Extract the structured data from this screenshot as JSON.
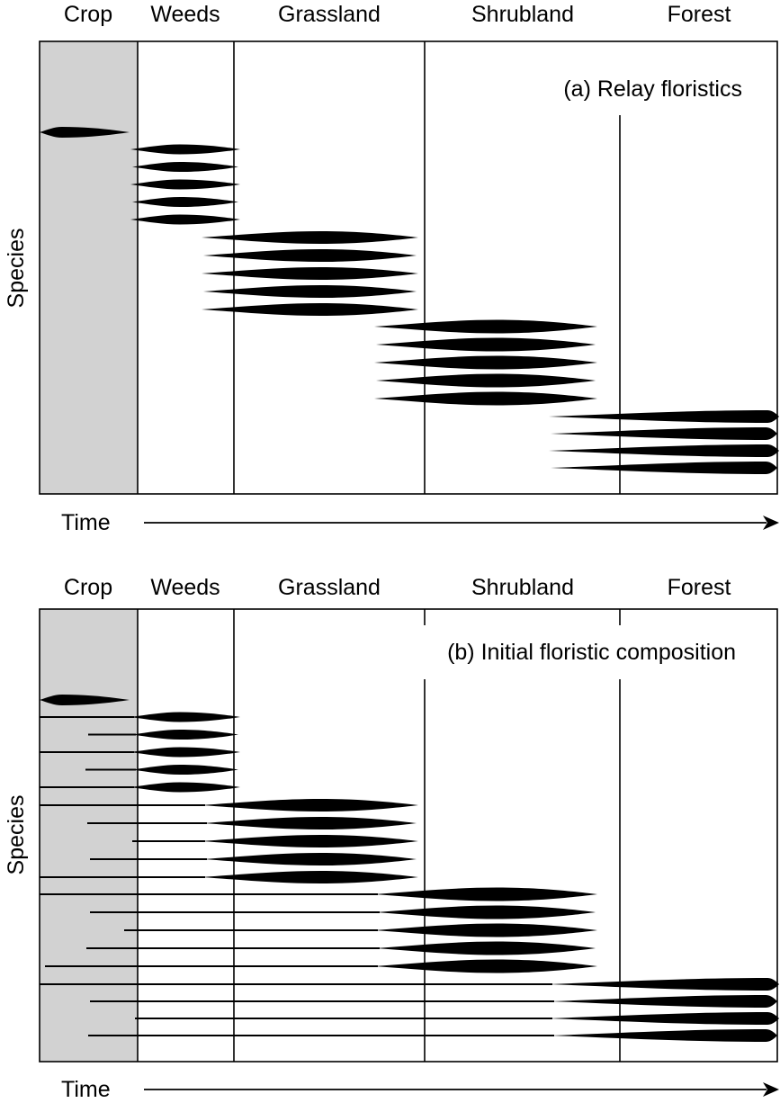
{
  "stages": [
    "Crop",
    "Weeds",
    "Grassland",
    "Shrubland",
    "Forest"
  ],
  "y_axis_label": "Species",
  "x_axis_label": "Time",
  "panel_a": {
    "title": "(a) Relay floristics",
    "species_per_stage": [
      1,
      5,
      5,
      5,
      4
    ]
  },
  "panel_b": {
    "title": "(b) Initial floristic composition",
    "species_per_stage": [
      1,
      5,
      5,
      5,
      4
    ]
  },
  "colors": {
    "crop_shading": "#d2d2d2",
    "ink": "#000000",
    "background": "#ffffff"
  }
}
